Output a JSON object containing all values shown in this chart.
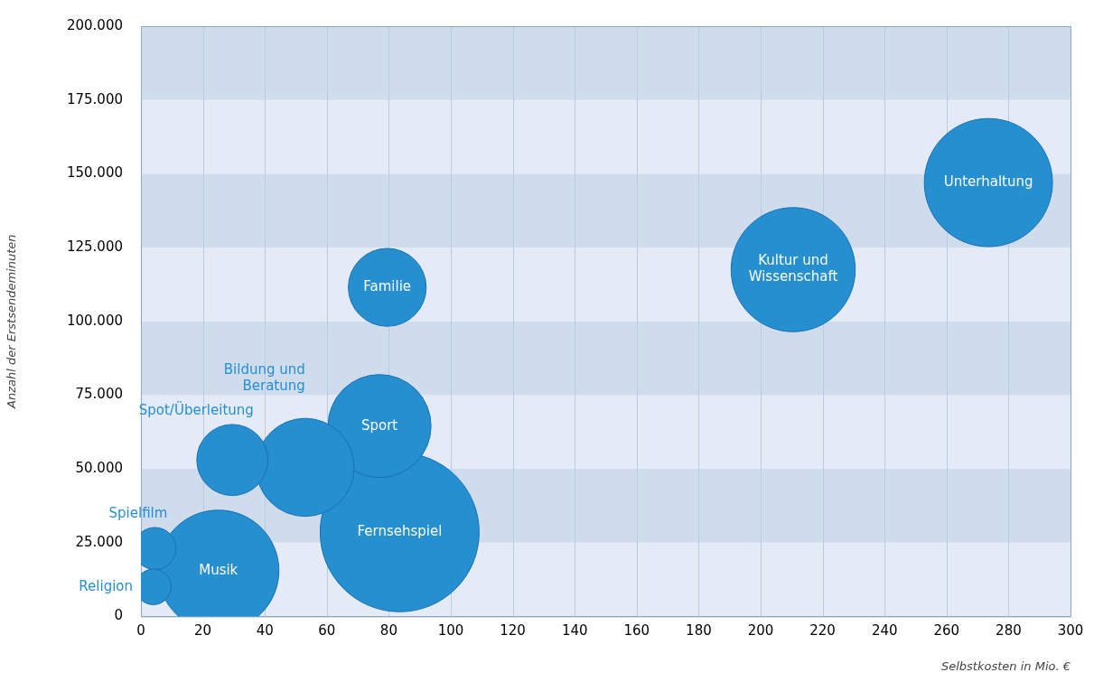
{
  "chart_data": {
    "type": "bubble",
    "xlabel": "Selbstkosten in Mio. €",
    "ylabel": "Anzahl der Erstsendeminuten",
    "xlim": [
      0,
      300
    ],
    "xticks": [
      0,
      20,
      40,
      60,
      80,
      100,
      120,
      140,
      160,
      180,
      200,
      220,
      240,
      260,
      280,
      300
    ],
    "ylim": [
      0,
      200000
    ],
    "yticks": [
      0,
      {
        "value": 25000,
        "label": "25.000"
      },
      {
        "value": 50000,
        "label": "50.000"
      },
      {
        "value": 75000,
        "label": "75.000"
      },
      {
        "value": 100000,
        "label": "100.000"
      },
      {
        "value": 125000,
        "label": "125.000"
      },
      {
        "value": 150000,
        "label": "150.000"
      },
      {
        "value": 175000,
        "label": "175.000"
      },
      {
        "value": 200000,
        "label": "200.000"
      }
    ],
    "grid": true,
    "series": [
      {
        "name": "Religion",
        "color": "#258fd0",
        "x": [
          4
        ],
        "values": [
          10000
        ],
        "sizes": [
          0.05
        ]
      },
      {
        "name": "Spielfilm",
        "color": "#258fd0",
        "x": [
          4.5
        ],
        "values": [
          23000
        ],
        "sizes": [
          0.07
        ]
      },
      {
        "name": "Musik",
        "color": "#258fd0",
        "x": [
          25
        ],
        "values": [
          15500
        ],
        "sizes": [
          0.58
        ]
      },
      {
        "name": "Spot/Überleitung",
        "color": "#258fd0",
        "x": [
          29.5
        ],
        "values": [
          53000
        ],
        "sizes": [
          0.2
        ]
      },
      {
        "name": "Bildung und Beratung",
        "color": "#258fd0",
        "x": [
          53
        ],
        "values": [
          50500
        ],
        "sizes": [
          0.38
        ]
      },
      {
        "name": "Sport",
        "color": "#258fd0",
        "x": [
          77
        ],
        "values": [
          64500
        ],
        "sizes": [
          0.42
        ]
      },
      {
        "name": "Familie",
        "color": "#258fd0",
        "x": [
          79.5
        ],
        "values": [
          111500
        ],
        "sizes": [
          0.24
        ]
      },
      {
        "name": "Fernsehspiel",
        "color": "#258fd0",
        "x": [
          83.5
        ],
        "values": [
          28500
        ],
        "sizes": [
          1
        ]
      },
      {
        "name": "Kultur und Wissenschaft",
        "color": "#258fd0",
        "x": [
          210.5
        ],
        "values": [
          117500
        ],
        "sizes": [
          0.61
        ]
      },
      {
        "name": "Unterhaltung",
        "color": "#258fd0",
        "x": [
          273.5
        ],
        "values": [
          147000
        ],
        "sizes": [
          0.65
        ]
      }
    ]
  }
}
